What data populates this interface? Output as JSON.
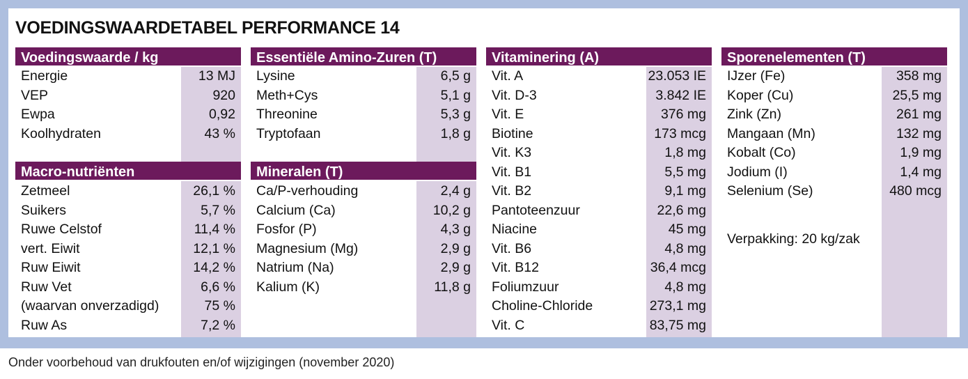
{
  "title": "VOEDINGSWAARDETABEL PERFORMANCE 14",
  "voedingswaarde": {
    "header": "Voedingswaarde / kg",
    "rows": [
      {
        "label": "Energie",
        "value": "13 MJ"
      },
      {
        "label": "VEP",
        "value": "920"
      },
      {
        "label": "Ewpa",
        "value": "0,92"
      },
      {
        "label": "Koolhydraten",
        "value": "43 %"
      }
    ]
  },
  "macro": {
    "header": "Macro-nutriënten",
    "rows": [
      {
        "label": "Zetmeel",
        "value": "26,1 %"
      },
      {
        "label": "Suikers",
        "value": "5,7 %"
      },
      {
        "label": "Ruwe Celstof",
        "value": "11,4 %"
      },
      {
        "label": "vert. Eiwit",
        "value": "12,1 %"
      },
      {
        "label": "Ruw Eiwit",
        "value": "14,2 %"
      },
      {
        "label": "Ruw Vet",
        "value": "6,6 %"
      },
      {
        "label": "(waarvan onverzadigd)",
        "value": "75 %"
      },
      {
        "label": "Ruw As",
        "value": "7,2 %"
      }
    ]
  },
  "amino": {
    "header": "Essentiële Amino-Zuren (T)",
    "rows": [
      {
        "label": "Lysine",
        "value": "6,5 g"
      },
      {
        "label": "Meth+Cys",
        "value": "5,1 g"
      },
      {
        "label": "Threonine",
        "value": "5,3 g"
      },
      {
        "label": "Tryptofaan",
        "value": "1,8 g"
      }
    ]
  },
  "mineralen": {
    "header": "Mineralen (T)",
    "rows": [
      {
        "label": "Ca/P-verhouding",
        "value": "2,4 g"
      },
      {
        "label": "Calcium (Ca)",
        "value": "10,2 g"
      },
      {
        "label": "Fosfor (P)",
        "value": "4,3 g"
      },
      {
        "label": "Magnesium (Mg)",
        "value": "2,9 g"
      },
      {
        "label": "Natrium (Na)",
        "value": "2,9 g"
      },
      {
        "label": "Kalium (K)",
        "value": "11,8 g"
      }
    ]
  },
  "vitaminering": {
    "header": "Vitaminering (A)",
    "rows": [
      {
        "label": "Vit. A",
        "value": "23.053 IE"
      },
      {
        "label": "Vit. D-3",
        "value": "3.842 IE"
      },
      {
        "label": "Vit. E",
        "value": "376 mg"
      },
      {
        "label": "Biotine",
        "value": "173 mcg"
      },
      {
        "label": "Vit. K3",
        "value": "1,8 mg"
      },
      {
        "label": "Vit. B1",
        "value": "5,5 mg"
      },
      {
        "label": "Vit. B2",
        "value": "9,1 mg"
      },
      {
        "label": "Pantoteenzuur",
        "value": "22,6 mg"
      },
      {
        "label": "Niacine",
        "value": "45 mg"
      },
      {
        "label": "Vit. B6",
        "value": "4,8 mg"
      },
      {
        "label": "Vit. B12",
        "value": "36,4 mcg"
      },
      {
        "label": "Foliumzuur",
        "value": "4,8 mg"
      },
      {
        "label": "Choline-Chloride",
        "value": "273,1 mg"
      },
      {
        "label": "Vit. C",
        "value": "83,75 mg"
      }
    ]
  },
  "sporenelementen": {
    "header": "Sporenelementen (T)",
    "rows": [
      {
        "label": "IJzer (Fe)",
        "value": "358 mg"
      },
      {
        "label": "Koper (Cu)",
        "value": "25,5 mg"
      },
      {
        "label": "Zink (Zn)",
        "value": "261 mg"
      },
      {
        "label": "Mangaan (Mn)",
        "value": "132 mg"
      },
      {
        "label": "Kobalt (Co)",
        "value": "1,9 mg"
      },
      {
        "label": "Jodium (I)",
        "value": "1,4 mg"
      },
      {
        "label": "Selenium (Se)",
        "value": "480 mcg"
      }
    ],
    "packaging": "Verpakking: 20 kg/zak"
  },
  "footnote": "Onder voorbehoud van drukfouten en/of wijzigingen (november 2020)",
  "colors": {
    "header_bg": "#6c1a5c",
    "value_column_bg": "#dbd0e2",
    "frame_bg": "#aebfdf"
  }
}
